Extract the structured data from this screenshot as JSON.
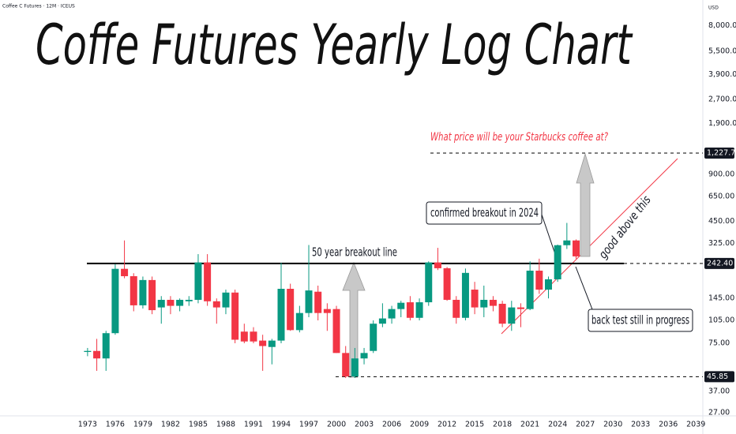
{
  "chart_data": {
    "type": "candlestick",
    "title": "Coffe Futures Yearly Log Chart",
    "source": "Coffee C Futures · 12M · ICEUS",
    "currency": "USD",
    "subtitle": "What price will be your Starbucks coffee at?",
    "annotations": [
      "50 year breakout line",
      "confirmed breakout in 2024",
      "good above this",
      "back test still in progress"
    ],
    "up_color": "#089981",
    "down_color": "#f23645",
    "log_scale": true,
    "x": [
      1973,
      1974,
      1975,
      1976,
      1977,
      1978,
      1979,
      1980,
      1981,
      1982,
      1983,
      1984,
      1985,
      1986,
      1987,
      1988,
      1989,
      1990,
      1991,
      1992,
      1993,
      1994,
      1995,
      1996,
      1997,
      1998,
      1999,
      2000,
      2001,
      2002,
      2003,
      2004,
      2005,
      2006,
      2007,
      2008,
      2009,
      2010,
      2011,
      2012,
      2013,
      2014,
      2015,
      2016,
      2017,
      2018,
      2019,
      2020,
      2021,
      2022,
      2023,
      2024,
      2025,
      2026
    ],
    "open": [
      66,
      67,
      60,
      87,
      224,
      201,
      131,
      190,
      127,
      142,
      130,
      139,
      142,
      246,
      139,
      127,
      158,
      89,
      89,
      78,
      71,
      78,
      167,
      91,
      117,
      160,
      124,
      124,
      65,
      46,
      60,
      67,
      100,
      108,
      124,
      137,
      109,
      137,
      246,
      226,
      142,
      109,
      165,
      127,
      142,
      134,
      100,
      127,
      124,
      218,
      165,
      192,
      317,
      340
    ],
    "high": [
      70,
      80,
      90,
      240,
      340,
      210,
      200,
      200,
      150,
      150,
      145,
      150,
      278,
      278,
      145,
      165,
      165,
      100,
      95,
      85,
      80,
      245,
      180,
      130,
      318,
      175,
      135,
      130,
      72,
      70,
      70,
      105,
      135,
      130,
      140,
      150,
      145,
      250,
      305,
      230,
      150,
      225,
      185,
      175,
      150,
      140,
      140,
      135,
      250,
      260,
      200,
      320,
      440,
      345
    ],
    "low": [
      62,
      50,
      50,
      85,
      195,
      120,
      125,
      115,
      100,
      115,
      120,
      130,
      135,
      130,
      100,
      115,
      75,
      75,
      75,
      50,
      55,
      75,
      90,
      88,
      110,
      105,
      90,
      65,
      45,
      45,
      55,
      65,
      95,
      100,
      110,
      105,
      105,
      130,
      220,
      140,
      100,
      105,
      115,
      110,
      120,
      95,
      90,
      95,
      122,
      155,
      145,
      185,
      300,
      260
    ],
    "close": [
      67,
      60,
      87,
      224,
      201,
      131,
      190,
      122,
      142,
      130,
      142,
      142,
      246,
      139,
      127,
      158,
      79,
      77,
      77,
      72,
      78,
      167,
      91,
      117,
      163,
      117,
      117,
      65,
      46,
      60,
      65,
      100,
      108,
      124,
      136,
      109,
      137,
      246,
      226,
      142,
      109,
      211,
      127,
      142,
      130,
      100,
      127,
      124,
      218,
      165,
      192,
      317,
      340,
      269
    ],
    "xlim": [
      1963.5,
      2039.75
    ],
    "ylim": [
      25.5,
      11000
    ],
    "xticks": [
      1973,
      1976,
      1979,
      1982,
      1985,
      1988,
      1991,
      1994,
      1997,
      2000,
      2003,
      2006,
      2009,
      2012,
      2015,
      2018,
      2021,
      2024,
      2027,
      2030,
      2033,
      2036,
      2039
    ],
    "yticks": [
      {
        "value": 8000,
        "label": "8,000.00"
      },
      {
        "value": 5500,
        "label": "5,500.00"
      },
      {
        "value": 3900,
        "label": "3,900.00"
      },
      {
        "value": 2700,
        "label": "2,700.00"
      },
      {
        "value": 1900,
        "label": "1,900.00"
      },
      {
        "value": 900,
        "label": "900.00"
      },
      {
        "value": 650,
        "label": "650.00"
      },
      {
        "value": 450,
        "label": "450.00"
      },
      {
        "value": 325,
        "label": "325.00"
      },
      {
        "value": 145,
        "label": "145.00"
      },
      {
        "value": 105,
        "label": "105.00"
      },
      {
        "value": 75,
        "label": "75.00"
      },
      {
        "value": 37,
        "label": "37.00"
      },
      {
        "value": 27,
        "label": "27.00"
      }
    ],
    "price_labels": [
      {
        "value": 1227.75,
        "label": "1,227.75"
      },
      {
        "value": 242.4,
        "label": "242.40"
      },
      {
        "value": 45.85,
        "label": "45.85"
      }
    ]
  }
}
